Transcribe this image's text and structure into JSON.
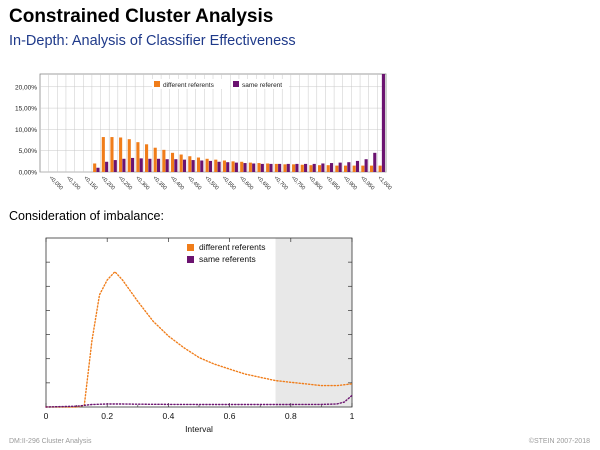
{
  "slide": {
    "title": "Constrained Cluster Analysis",
    "subtitle": "In-Depth: Analysis of Classifier Effectiveness",
    "section_heading": "Consideration of imbalance:",
    "footer_left": "DM:II-296   Cluster Analysis",
    "footer_right": "©STEIN 2007-2018"
  },
  "colors": {
    "orange": "#f07d1a",
    "purple": "#6b1370",
    "shade": "#e8e8e8",
    "grid": "#c8c8c8"
  },
  "chart_data": [
    {
      "type": "bar",
      "legend_position": "top",
      "ylim": [
        0,
        0.23
      ],
      "y_ticks": [
        "0,00%",
        "5,00%",
        "10,00%",
        "15,00%",
        "20,00%"
      ],
      "y_tick_values": [
        0,
        0.05,
        0.1,
        0.15,
        0.2
      ],
      "grid": true,
      "categories": [
        "<0,050",
        "<0,100",
        "<0,150",
        "<0,200",
        "<0,250",
        "<0,300",
        "<0,350",
        "<0,400",
        "<0,450",
        "<0,500",
        "<0,550",
        "<0,600",
        "<0,650",
        "<0,700",
        "<0,750",
        "<0,800",
        "<0,850",
        "<0,900",
        "<0,950",
        "<1,000"
      ],
      "category_positions": [
        0.05,
        0.1,
        0.15,
        0.2,
        0.25,
        0.3,
        0.35,
        0.4,
        0.45,
        0.5,
        0.55,
        0.6,
        0.65,
        0.7,
        0.75,
        0.8,
        0.85,
        0.9,
        0.95,
        1.0
      ],
      "series": [
        {
          "name": "different referents",
          "color": "#f07d1a",
          "x": [
            0.175,
            0.2,
            0.225,
            0.25,
            0.275,
            0.3,
            0.325,
            0.35,
            0.375,
            0.4,
            0.425,
            0.45,
            0.475,
            0.5,
            0.525,
            0.55,
            0.575,
            0.6,
            0.625,
            0.65,
            0.675,
            0.7,
            0.725,
            0.75,
            0.775,
            0.8,
            0.825,
            0.85,
            0.875,
            0.9,
            0.925,
            0.95,
            0.975,
            1.0
          ],
          "values": [
            0.02,
            0.082,
            0.082,
            0.081,
            0.077,
            0.07,
            0.065,
            0.057,
            0.052,
            0.045,
            0.041,
            0.037,
            0.034,
            0.031,
            0.029,
            0.027,
            0.025,
            0.024,
            0.022,
            0.021,
            0.02,
            0.019,
            0.018,
            0.018,
            0.017,
            0.016,
            0.016,
            0.016,
            0.015,
            0.015,
            0.015,
            0.015,
            0.015,
            0.015
          ]
        },
        {
          "name": "same referent",
          "color": "#6b1370",
          "x": [
            0.175,
            0.2,
            0.225,
            0.25,
            0.275,
            0.3,
            0.325,
            0.35,
            0.375,
            0.4,
            0.425,
            0.45,
            0.475,
            0.5,
            0.525,
            0.55,
            0.575,
            0.6,
            0.625,
            0.65,
            0.675,
            0.7,
            0.725,
            0.75,
            0.775,
            0.8,
            0.825,
            0.85,
            0.875,
            0.9,
            0.925,
            0.95,
            0.975,
            1.0
          ],
          "values": [
            0.01,
            0.024,
            0.028,
            0.031,
            0.033,
            0.032,
            0.031,
            0.031,
            0.03,
            0.03,
            0.029,
            0.028,
            0.027,
            0.026,
            0.024,
            0.023,
            0.022,
            0.021,
            0.02,
            0.019,
            0.019,
            0.019,
            0.019,
            0.019,
            0.019,
            0.019,
            0.02,
            0.021,
            0.022,
            0.023,
            0.026,
            0.03,
            0.045,
            0.23
          ]
        }
      ]
    },
    {
      "type": "line",
      "xlabel": "Interval",
      "xlim": [
        0,
        1
      ],
      "x_ticks": [
        "0",
        "0.2",
        "0.4",
        "0.6",
        "0.8",
        "1"
      ],
      "x_tick_values": [
        0,
        0.2,
        0.4,
        0.6,
        0.8,
        1
      ],
      "shaded_x_range": [
        0.75,
        1.0
      ],
      "legend_position": "top-center",
      "series": [
        {
          "name": "different referents",
          "color": "#f07d1a",
          "x": [
            0,
            0.05,
            0.1,
            0.125,
            0.15,
            0.175,
            0.2,
            0.225,
            0.25,
            0.3,
            0.35,
            0.4,
            0.45,
            0.5,
            0.55,
            0.6,
            0.65,
            0.7,
            0.75,
            0.8,
            0.85,
            0.9,
            0.95,
            1.0
          ],
          "values": [
            0,
            0,
            0,
            0.01,
            0.4,
            0.68,
            0.77,
            0.82,
            0.77,
            0.64,
            0.52,
            0.43,
            0.36,
            0.3,
            0.26,
            0.23,
            0.2,
            0.18,
            0.16,
            0.15,
            0.14,
            0.13,
            0.13,
            0.14
          ]
        },
        {
          "name": "same referents",
          "color": "#6b1370",
          "x": [
            0,
            0.1,
            0.15,
            0.2,
            0.25,
            0.3,
            0.4,
            0.5,
            0.6,
            0.7,
            0.8,
            0.9,
            0.95,
            0.975,
            1.0
          ],
          "values": [
            0,
            0.005,
            0.015,
            0.018,
            0.018,
            0.017,
            0.016,
            0.015,
            0.015,
            0.015,
            0.015,
            0.016,
            0.018,
            0.03,
            0.07
          ]
        }
      ]
    }
  ]
}
